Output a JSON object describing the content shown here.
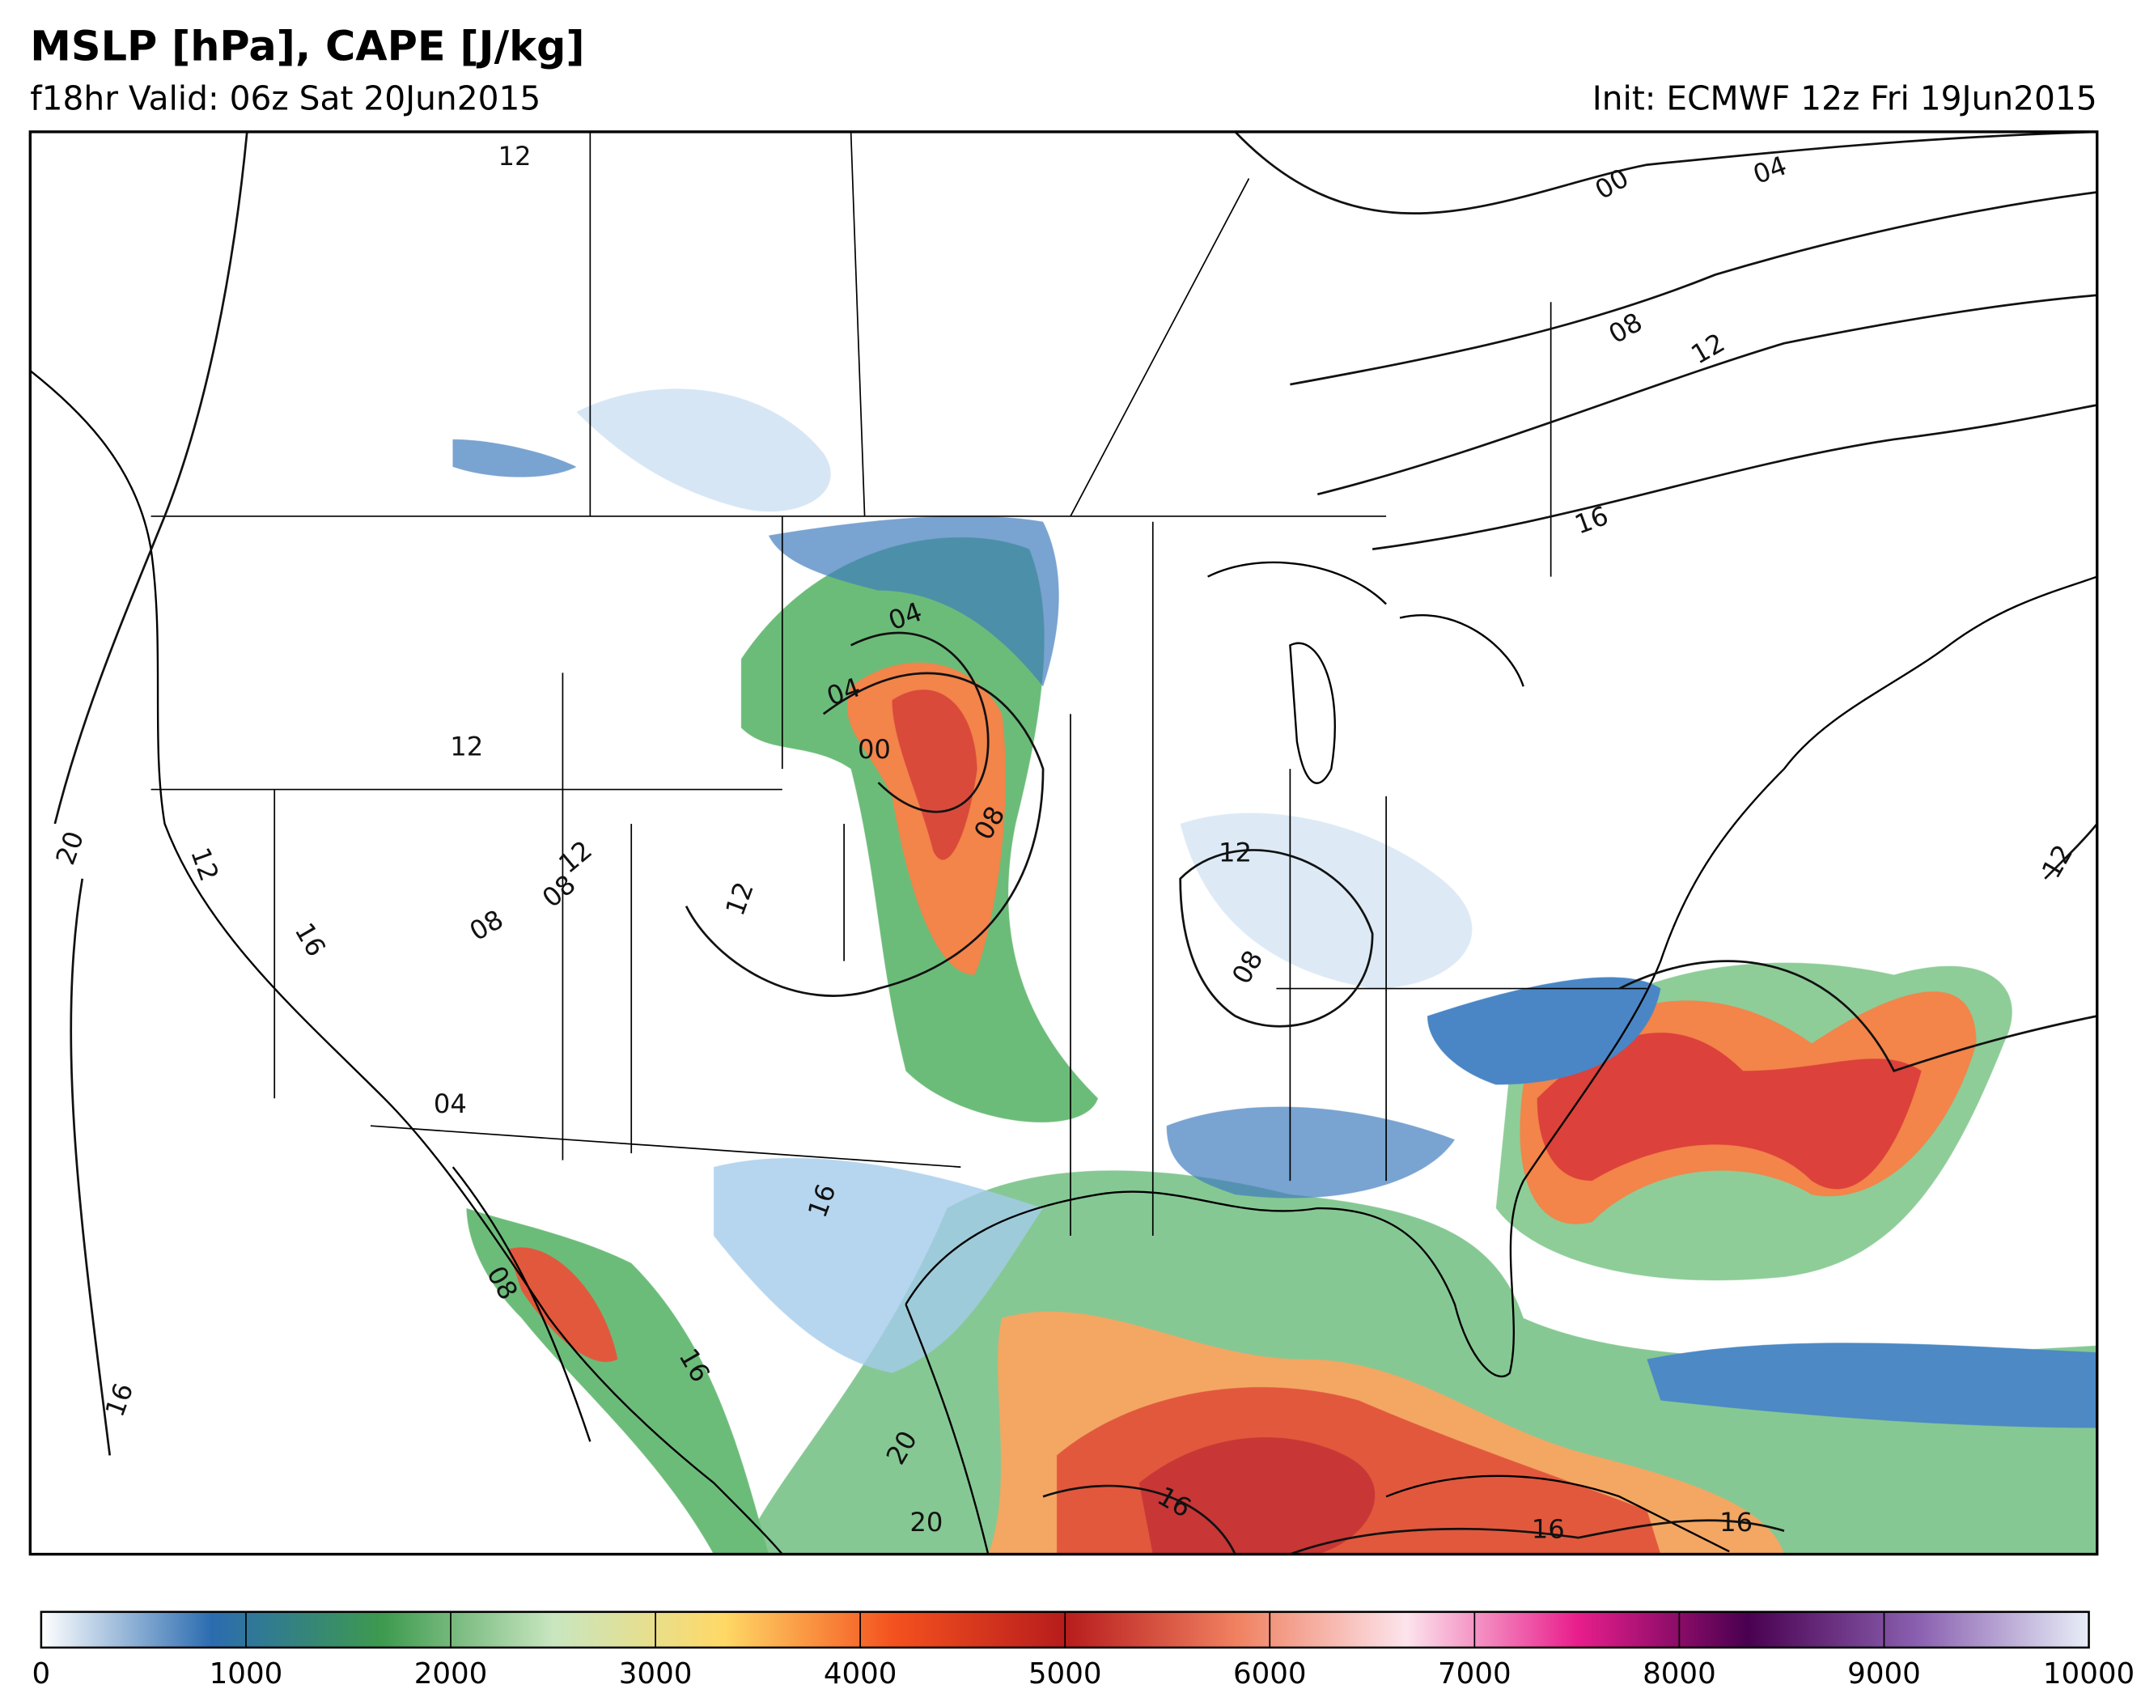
{
  "header": {
    "title": "MSLP [hPa], CAPE [J/kg]",
    "valid": "f18hr Valid: 06z Sat 20Jun2015",
    "init": "Init: ECMWF 12z Fri 19Jun2015"
  },
  "contour_labels": [
    "12",
    "00",
    "04",
    "08",
    "12",
    "16",
    "04",
    "04",
    "00",
    "12",
    "08",
    "12",
    "20",
    "12",
    "16",
    "12",
    "08",
    "08",
    "12",
    "08",
    "04",
    "16",
    "08",
    "16",
    "20",
    "20",
    "16",
    "16",
    "16",
    "12",
    "16"
  ],
  "colorbar": {
    "lim": [
      0,
      10000
    ],
    "ticks": [
      0,
      1000,
      2000,
      3000,
      4000,
      5000,
      6000,
      7000,
      8000,
      9000,
      10000
    ],
    "colors": [
      "#ffffff",
      "#2b6cb0",
      "#3d9a4e",
      "#c8e6c0",
      "#ffd966",
      "#f4511e",
      "#b71c1c",
      "#f08060",
      "#fce4ec",
      "#e91e8c",
      "#4a0050",
      "#8a60b0",
      "#e8eef8"
    ]
  }
}
